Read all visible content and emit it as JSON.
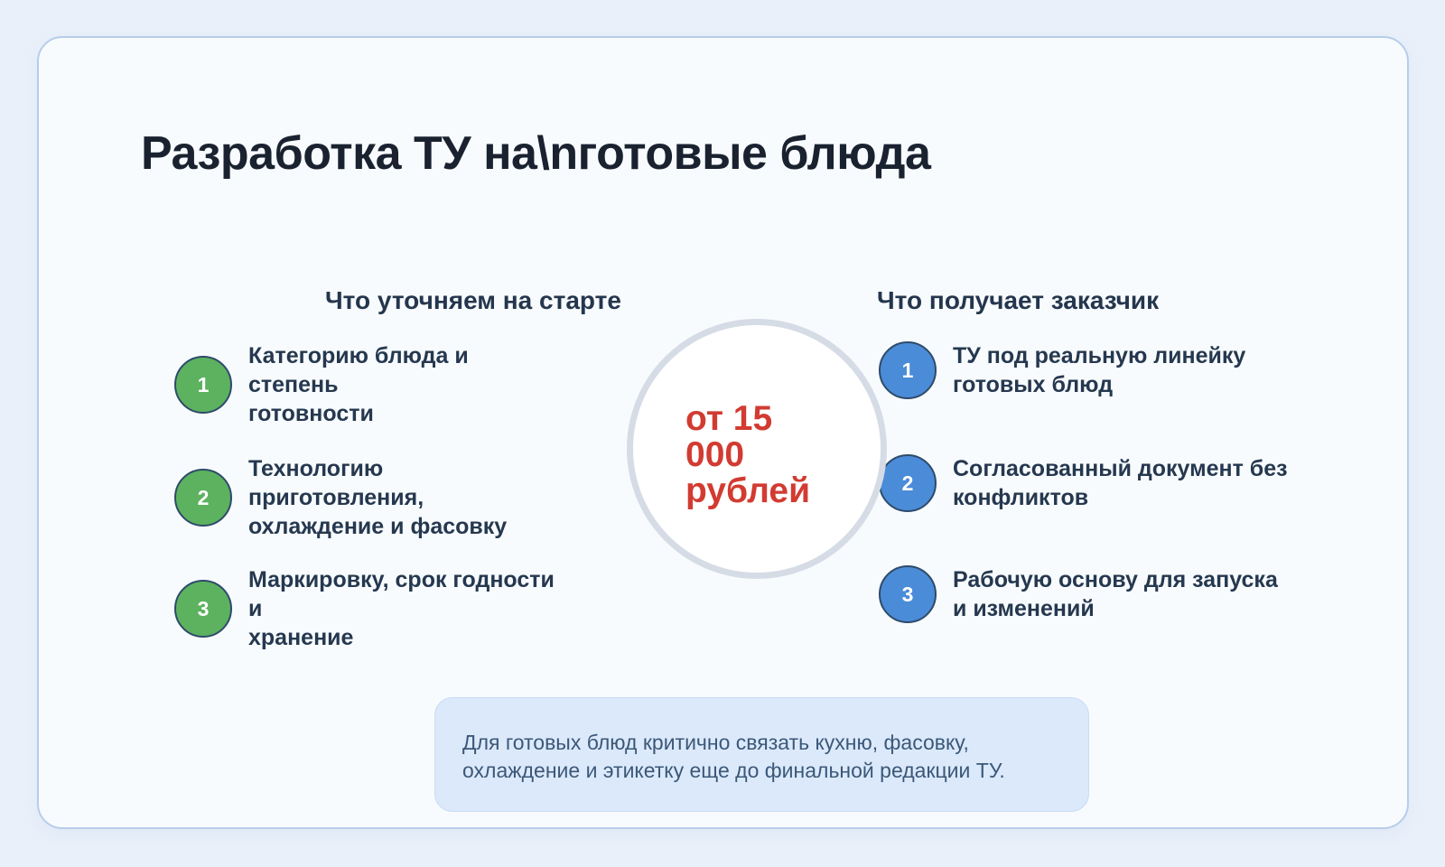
{
  "title": "Разработка ТУ на\\nготовые блюда",
  "columns": {
    "left": {
      "header": "Что уточняем на старте",
      "accent_color": "#5cb25f",
      "items": [
        {
          "num": "1",
          "text": "Категорию блюда и степень\nготовности"
        },
        {
          "num": "2",
          "text": "Технологию приготовления,\nохлаждение и фасовку"
        },
        {
          "num": "3",
          "text": "Маркировку, срок годности и\nхранение"
        }
      ]
    },
    "right": {
      "header": "Что получает заказчик",
      "accent_color": "#4a8cd8",
      "items": [
        {
          "num": "1",
          "text": "ТУ под реальную линейку\nготовых блюд"
        },
        {
          "num": "2",
          "text": "Согласованный документ без\nконфликтов"
        },
        {
          "num": "3",
          "text": "Рабочую основу для запуска\nи изменений"
        }
      ]
    }
  },
  "price": {
    "text": "от 15\n000\nрублей",
    "color": "#d23b31"
  },
  "note": {
    "text": "Для готовых блюд критично связать кухню, фасовку,\nохлаждение и этикетку еще до финальной редакции ТУ."
  },
  "theme": {
    "page_background": "#e9f0fa",
    "card_background": "#f8fbfe",
    "card_border": "#b7cdea",
    "heading_color": "#24364d",
    "text_color": "#25384f"
  }
}
